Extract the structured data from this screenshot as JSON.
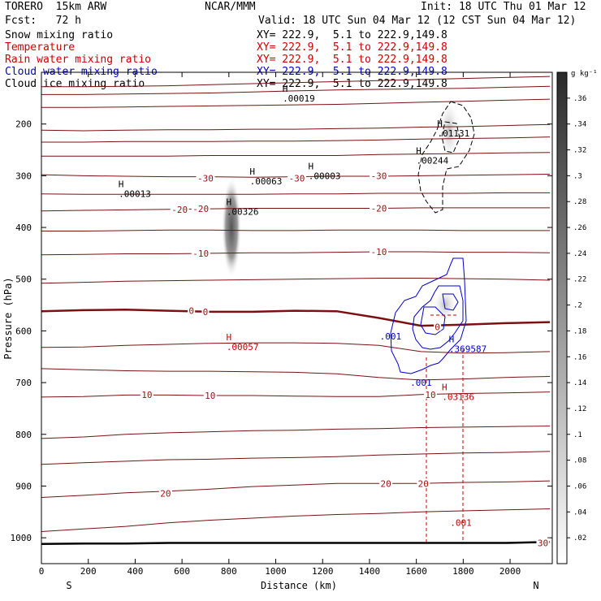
{
  "header": {
    "model": "TORERO  15km ARW",
    "org": "NCAR/MMM",
    "init": "Init: 18 UTC Thu 01 Mar 12",
    "fcst": "Fcst:   72 h",
    "valid": "Valid: 18 UTC Sun 04 Mar 12 (12 CST Sun 04 Mar 12)"
  },
  "fields": [
    {
      "name": "Snow mixing ratio",
      "xy": "XY= 222.9,  5.1 to 222.9,149.8",
      "color": "#000000"
    },
    {
      "name": "Temperature",
      "xy": "XY= 222.9,  5.1 to 222.9,149.8",
      "color": "#cc0000"
    },
    {
      "name": "Rain water mixing ratio",
      "xy": "XY= 222.9,  5.1 to 222.9,149.8",
      "color": "#cc0000"
    },
    {
      "name": "Cloud water mixing ratio",
      "xy": "XY= 222.9,  5.1 to 222.9,149.8",
      "color": "#0000cc"
    },
    {
      "name": "Cloud ice mixing ratio",
      "xy": "XY= 222.9,  5.1 to 222.9,149.8",
      "color": "#000000"
    }
  ],
  "chart_data": {
    "type": "contour-cross-section",
    "xlabel": "Distance (km)",
    "ylabel": "Pressure (hPa)",
    "xlim": [
      0,
      2180
    ],
    "ylim": [
      1050,
      100
    ],
    "x_ticks": [
      0,
      200,
      400,
      600,
      800,
      1000,
      1200,
      1400,
      1600,
      1800,
      2000
    ],
    "y_ticks": [
      200,
      300,
      400,
      500,
      600,
      700,
      800,
      900,
      1000
    ],
    "x_end_labels": [
      "S",
      "N"
    ],
    "colorbar": {
      "unit": "g kg⁻¹",
      "levels": [
        ".02",
        ".04",
        ".06",
        ".08",
        ".1",
        ".12",
        ".14",
        ".16",
        ".18",
        ".2",
        ".22",
        ".24",
        ".26",
        ".28",
        ".3",
        ".32",
        ".34",
        ".36"
      ]
    },
    "temperature_labels": [
      {
        "text": "-30",
        "x": 700,
        "p": 305
      },
      {
        "text": "-30",
        "x": 1090,
        "p": 305
      },
      {
        "text": "-30",
        "x": 1440,
        "p": 300
      },
      {
        "text": "-20",
        "x": 590,
        "p": 365
      },
      {
        "text": "-20",
        "x": 680,
        "p": 364
      },
      {
        "text": "-20",
        "x": 1440,
        "p": 363
      },
      {
        "text": "-10",
        "x": 680,
        "p": 450
      },
      {
        "text": "-10",
        "x": 1440,
        "p": 447
      },
      {
        "text": "0",
        "x": 640,
        "p": 561
      },
      {
        "text": "0",
        "x": 700,
        "p": 563
      },
      {
        "text": "0",
        "x": 1690,
        "p": 592
      },
      {
        "text": "10",
        "x": 450,
        "p": 723
      },
      {
        "text": "10",
        "x": 720,
        "p": 725
      },
      {
        "text": "10",
        "x": 1660,
        "p": 723
      },
      {
        "text": "20",
        "x": 530,
        "p": 914
      },
      {
        "text": "20",
        "x": 1470,
        "p": 895
      },
      {
        "text": "20",
        "x": 1630,
        "p": 895
      },
      {
        "text": "30",
        "x": 2140,
        "p": 1010
      }
    ],
    "maxima": [
      {
        "label": "H",
        "value": ".00019",
        "x": 1040,
        "p": 138,
        "color": "#000000"
      },
      {
        "label": "H",
        "value": ".01131",
        "x": 1700,
        "p": 205,
        "color": "#000000"
      },
      {
        "label": "H",
        "value": ".00244",
        "x": 1610,
        "p": 258,
        "color": "#000000"
      },
      {
        "label": "H",
        "value": ".00003",
        "x": 1150,
        "p": 288,
        "color": "#000000"
      },
      {
        "label": "H",
        "value": ".00063",
        "x": 900,
        "p": 298,
        "color": "#000000"
      },
      {
        "label": "H",
        "value": ".00013",
        "x": 340,
        "p": 322,
        "color": "#000000"
      },
      {
        "label": "H",
        "value": ".00326",
        "x": 800,
        "p": 357,
        "color": "#000000"
      },
      {
        "label": "H",
        "value": ".00057",
        "x": 800,
        "p": 618,
        "color": "#cc0000"
      },
      {
        "label": "H",
        "value": ".369587",
        "x": 1750,
        "p": 622,
        "color": "#0000cc"
      },
      {
        "label": "H",
        "value": ".03136",
        "x": 1720,
        "p": 715,
        "color": "#cc0000"
      }
    ],
    "contour_value_labels": [
      {
        "text": ".001",
        "x": 1490,
        "p": 617,
        "color": "#0000cc"
      },
      {
        "text": ".001",
        "x": 1620,
        "p": 706,
        "color": "#0000cc"
      },
      {
        "text": ".001",
        "x": 1790,
        "p": 977,
        "color": "#cc0000"
      }
    ],
    "series": [
      {
        "name": "isotherm",
        "p": [
          128,
          128,
          127,
          126,
          124,
          122,
          120,
          118,
          116,
          114,
          112,
          110,
          108
        ]
      },
      {
        "name": "isotherm",
        "p": [
          143,
          143,
          142,
          141,
          140,
          138,
          136,
          134,
          133,
          132,
          131,
          129,
          127
        ]
      },
      {
        "name": "isotherm",
        "p": [
          168,
          168,
          167,
          166,
          165,
          164,
          163,
          162,
          160,
          158,
          156,
          154,
          152
        ]
      },
      {
        "name": "isotherm",
        "p": [
          212,
          213,
          212,
          211,
          211,
          210,
          210,
          209,
          208,
          206,
          205,
          203,
          201
        ]
      },
      {
        "name": "isotherm",
        "p": [
          235,
          235,
          234,
          234,
          234,
          233,
          233,
          232,
          231,
          229,
          228,
          227,
          225
        ]
      },
      {
        "name": "isotherm",
        "p": [
          262,
          262,
          262,
          262,
          261,
          261,
          261,
          261,
          259,
          258,
          257,
          256,
          255
        ]
      },
      {
        "name": "isotherm",
        "p": [
          298,
          300,
          301,
          302,
          302,
          303,
          302,
          301,
          301,
          300,
          299,
          298,
          297
        ]
      },
      {
        "name": "isotherm",
        "p": [
          335,
          336,
          336,
          336,
          336,
          336,
          335,
          335,
          334,
          334,
          334,
          333,
          333
        ]
      },
      {
        "name": "isotherm",
        "p": [
          368,
          367,
          366,
          365,
          364,
          363,
          363,
          363,
          363,
          362,
          362,
          362,
          362
        ]
      },
      {
        "name": "isotherm",
        "p": [
          407,
          407,
          406,
          405,
          405,
          406,
          406,
          405,
          405,
          405,
          406,
          406,
          406
        ]
      },
      {
        "name": "isotherm",
        "p": [
          453,
          452,
          451,
          451,
          450,
          449,
          449,
          448,
          447,
          447,
          448,
          448,
          449
        ]
      },
      {
        "name": "isotherm",
        "p": [
          508,
          506,
          504,
          503,
          502,
          501,
          500,
          499,
          498,
          498,
          499,
          500,
          502
        ]
      },
      {
        "name": "isotherm",
        "p": [
          562,
          560,
          559,
          561,
          563,
          563,
          561,
          562,
          575,
          590,
          588,
          585,
          583
        ]
      },
      {
        "name": "isotherm",
        "p": [
          632,
          631,
          628,
          626,
          624,
          623,
          623,
          624,
          628,
          640,
          643,
          642,
          640
        ]
      },
      {
        "name": "isotherm",
        "p": [
          673,
          675,
          677,
          678,
          678,
          679,
          680,
          683,
          690,
          695,
          693,
          690,
          688
        ]
      },
      {
        "name": "isotherm",
        "p": [
          728,
          727,
          724,
          724,
          725,
          725,
          726,
          727,
          727,
          723,
          721,
          720,
          718
        ]
      },
      {
        "name": "isotherm",
        "p": [
          808,
          805,
          800,
          797,
          795,
          793,
          792,
          790,
          789,
          787,
          786,
          785,
          784
        ]
      },
      {
        "name": "isotherm",
        "p": [
          858,
          855,
          852,
          849,
          848,
          846,
          845,
          843,
          840,
          838,
          836,
          835,
          833
        ]
      },
      {
        "name": "isotherm",
        "p": [
          922,
          918,
          913,
          910,
          906,
          901,
          898,
          895,
          895,
          895,
          893,
          892,
          890
        ]
      },
      {
        "name": "isotherm",
        "p": [
          988,
          983,
          978,
          971,
          966,
          962,
          958,
          955,
          953,
          950,
          948,
          946,
          944
        ]
      },
      {
        "name": "terrain",
        "p": [
          1012,
          1011,
          1011,
          1010,
          1010,
          1010,
          1010,
          1010,
          1010,
          1010,
          1010,
          1010,
          1008
        ]
      }
    ],
    "series_x": [
      0,
      180,
      360,
      540,
      720,
      900,
      1080,
      1260,
      1440,
      1620,
      1800,
      1980,
      2170
    ]
  }
}
